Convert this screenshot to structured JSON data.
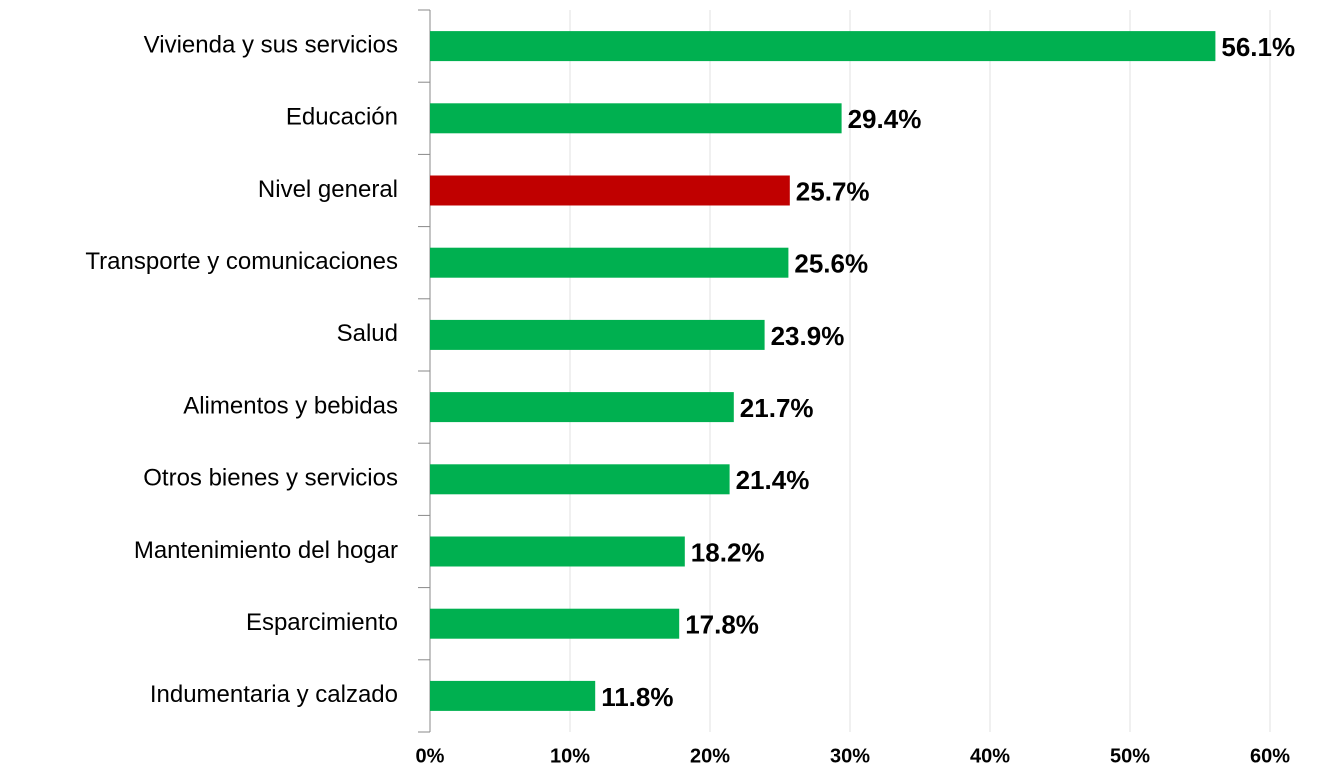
{
  "chart_data": {
    "type": "barh",
    "categories": [
      "Vivienda y sus servicios",
      "Educación",
      "Nivel general",
      "Transporte y comunicaciones",
      "Salud",
      "Alimentos y bebidas",
      "Otros bienes y servicios",
      "Mantenimiento del hogar",
      "Esparcimiento",
      "Indumentaria y calzado"
    ],
    "values": [
      56.1,
      29.4,
      25.7,
      25.6,
      23.9,
      21.7,
      21.4,
      18.2,
      17.8,
      11.8
    ],
    "value_labels": [
      "56.1%",
      "29.4%",
      "25.7%",
      "25.6%",
      "23.9%",
      "21.7%",
      "21.4%",
      "18.2%",
      "17.8%",
      "11.8%"
    ],
    "colors": [
      "#00b050",
      "#00b050",
      "#c00000",
      "#00b050",
      "#00b050",
      "#00b050",
      "#00b050",
      "#00b050",
      "#00b050",
      "#00b050"
    ],
    "xlim": [
      0,
      60
    ],
    "xticks": [
      {
        "value": 0,
        "label": "0%"
      },
      {
        "value": 10,
        "label": "10%"
      },
      {
        "value": 20,
        "label": "20%"
      },
      {
        "value": 30,
        "label": "30%"
      },
      {
        "value": 40,
        "label": "40%"
      },
      {
        "value": 50,
        "label": "50%"
      },
      {
        "value": 60,
        "label": "60%"
      }
    ],
    "grid": true
  }
}
